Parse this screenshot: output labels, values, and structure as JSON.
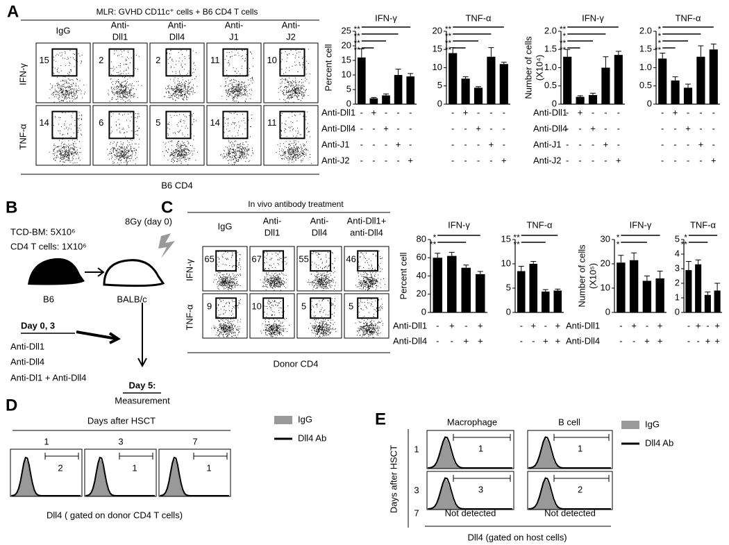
{
  "panel_labels": [
    "A",
    "B",
    "C",
    "D",
    "E"
  ],
  "panel_a": {
    "header": "MLR: GVHD CD11c⁺ cells + B6 CD4 T cells",
    "columns": [
      [
        "IgG"
      ],
      [
        "Anti-",
        "Dll1"
      ],
      [
        "Anti-",
        "Dll4"
      ],
      [
        "Anti-",
        "J1"
      ],
      [
        "Anti-",
        "J2"
      ]
    ],
    "rows": [
      "IFN-γ",
      "TNF-α"
    ],
    "gates": [
      [
        "15",
        "2",
        "2",
        "11",
        "10"
      ],
      [
        "14",
        "6",
        "5",
        "14",
        "11"
      ]
    ],
    "xlabel": "B6 CD4",
    "treatments": [
      "Anti-Dll1",
      "Anti-Dll4",
      "Anti-J1",
      "Anti-J2"
    ],
    "signs": [
      [
        "-",
        "+",
        "-",
        "-",
        "-"
      ],
      [
        "-",
        "-",
        "+",
        "-",
        "-"
      ],
      [
        "-",
        "-",
        "-",
        "+",
        "-"
      ],
      [
        "-",
        "-",
        "-",
        "-",
        "+"
      ]
    ]
  },
  "panel_b": {
    "lines": [
      "TCD-BM: 5X10⁶",
      "CD4 T cells: 1X10⁶"
    ],
    "dose": "8Gy (day 0)",
    "donor": "B6",
    "recipient": "BALB/c",
    "days": "Day  0, 3",
    "treatments": [
      "Anti-Dll1",
      "Anti-Dll4",
      "Anti-Dl1 + Anti-Dll4"
    ],
    "end": "Day 5:",
    "measure": "Measurement"
  },
  "panel_c": {
    "header": "In vivo antibody treatment",
    "columns": [
      [
        "IgG"
      ],
      [
        "Anti-",
        "Dll1"
      ],
      [
        "Anti-",
        "Dll4"
      ],
      [
        "Anti-Dll1+",
        "anti-Dll4"
      ]
    ],
    "rows": [
      "IFN-γ",
      "TNF-α"
    ],
    "gates": [
      [
        "65",
        "67",
        "55",
        "46"
      ],
      [
        "9",
        "10",
        "5",
        "5"
      ]
    ],
    "xlabel": "Donor CD4",
    "treatments": [
      "Anti-Dll1",
      "Anti-Dll4"
    ],
    "signs": [
      [
        "-",
        "+",
        "-",
        "+"
      ],
      [
        "-",
        "-",
        "+",
        "+"
      ]
    ]
  },
  "panel_d": {
    "header": "Days after HSCT",
    "days": [
      "1",
      "3",
      "7"
    ],
    "gates": [
      "2",
      "1",
      "1"
    ],
    "legend": [
      "IgG",
      "Dll4 Ab"
    ],
    "xlabel": "Dll4 ( gated on donor CD4 T cells)"
  },
  "panel_e": {
    "columns": [
      "Macrophage",
      "B cell"
    ],
    "ylabel": "Days after HSCT",
    "days": [
      "1",
      "3",
      "7"
    ],
    "gates": [
      [
        "1",
        "1"
      ],
      [
        "3",
        "2"
      ],
      [
        "Not detected",
        "Not detected"
      ]
    ],
    "legend": [
      "IgG",
      "Dll4 Ab"
    ],
    "xlabel": "Dll4 (gated on host cells)"
  },
  "chart_data": [
    {
      "type": "bar",
      "title": "IFN-γ",
      "ylabel": [
        "Percent cell"
      ],
      "color": "#000000",
      "ylim": [
        0,
        25
      ],
      "yticks": [
        0,
        5,
        10,
        15,
        20,
        25
      ],
      "values": [
        16,
        2,
        3,
        10,
        9.5
      ],
      "errors": [
        3,
        0.3,
        0.5,
        2,
        1
      ],
      "stars": [
        "**",
        "**",
        "**",
        "**"
      ]
    },
    {
      "type": "bar",
      "title": "TNF-α",
      "ylabel": [],
      "color": "#000000",
      "ylim": [
        0,
        20
      ],
      "yticks": [
        0,
        5,
        10,
        15,
        20
      ],
      "values": [
        14,
        7,
        4.5,
        13,
        11
      ],
      "errors": [
        1.5,
        0.5,
        0.3,
        2.5,
        0.5
      ],
      "stars": [
        "**",
        "**",
        "**",
        "**"
      ]
    },
    {
      "type": "bar",
      "title": "IFN-γ",
      "ylabel": [
        "Number of cells",
        "(X10⁴)"
      ],
      "color": "#000000",
      "ylim": [
        0,
        2
      ],
      "yticks": [
        0,
        0.5,
        {
          "value": 1,
          "label": "1.0"
        },
        1.5,
        {
          "value": 2,
          "label": "2.0"
        }
      ],
      "values": [
        1.3,
        0.2,
        0.25,
        1.0,
        1.35
      ],
      "errors": [
        0.2,
        0.03,
        0.05,
        0.3,
        0.1
      ],
      "stars": [
        "**",
        "*",
        "**",
        "**"
      ]
    },
    {
      "type": "bar",
      "title": "TNF-α",
      "ylabel": [],
      "color": "#000000",
      "ylim": [
        0,
        2
      ],
      "yticks": [
        0,
        0.5,
        {
          "value": 1,
          "label": "1.0"
        },
        1.5,
        {
          "value": 2,
          "label": "2.0"
        }
      ],
      "values": [
        1.25,
        0.65,
        0.45,
        1.3,
        1.5
      ],
      "errors": [
        0.15,
        0.1,
        0.1,
        0.3,
        0.15
      ],
      "stars": [
        "*",
        "*",
        "*",
        "**"
      ]
    },
    {
      "type": "bar",
      "title": "IFN-γ",
      "ylabel": [
        "Percent cell"
      ],
      "color": "#000000",
      "ylim": [
        0,
        80
      ],
      "yticks": [
        0,
        20,
        40,
        60,
        80
      ],
      "values": [
        60,
        62,
        49,
        42
      ],
      "errors": [
        5,
        4,
        3,
        3
      ],
      "stars": [
        "*",
        "**"
      ]
    },
    {
      "type": "bar",
      "title": "TNF-α",
      "ylabel": [],
      "color": "#000000",
      "ylim": [
        0,
        15
      ],
      "yticks": [
        0,
        5,
        10,
        15
      ],
      "values": [
        8.5,
        10,
        4.3,
        4.5
      ],
      "errors": [
        1,
        0.5,
        0.4,
        0.3
      ],
      "stars": [
        "**",
        "**"
      ]
    },
    {
      "type": "bar",
      "title": "IFN-γ",
      "ylabel": [
        "Number of cells",
        "(X10⁵)"
      ],
      "color": "#000000",
      "ylim": [
        0,
        30
      ],
      "yticks": [
        0,
        10,
        20,
        30
      ],
      "values": [
        20.5,
        21.5,
        13,
        14
      ],
      "errors": [
        3,
        3,
        2,
        3
      ],
      "stars": [
        "*",
        "*"
      ]
    },
    {
      "type": "bar",
      "title": "TNF-α",
      "ylabel": [],
      "color": "#000000",
      "ylim": [
        0,
        5
      ],
      "yticks": [
        0,
        1,
        2,
        3,
        4,
        5
      ],
      "values": [
        2.9,
        3.3,
        1.2,
        1.5
      ],
      "errors": [
        0.6,
        0.3,
        0.2,
        0.5
      ],
      "stars": [
        "*",
        "**"
      ]
    }
  ]
}
